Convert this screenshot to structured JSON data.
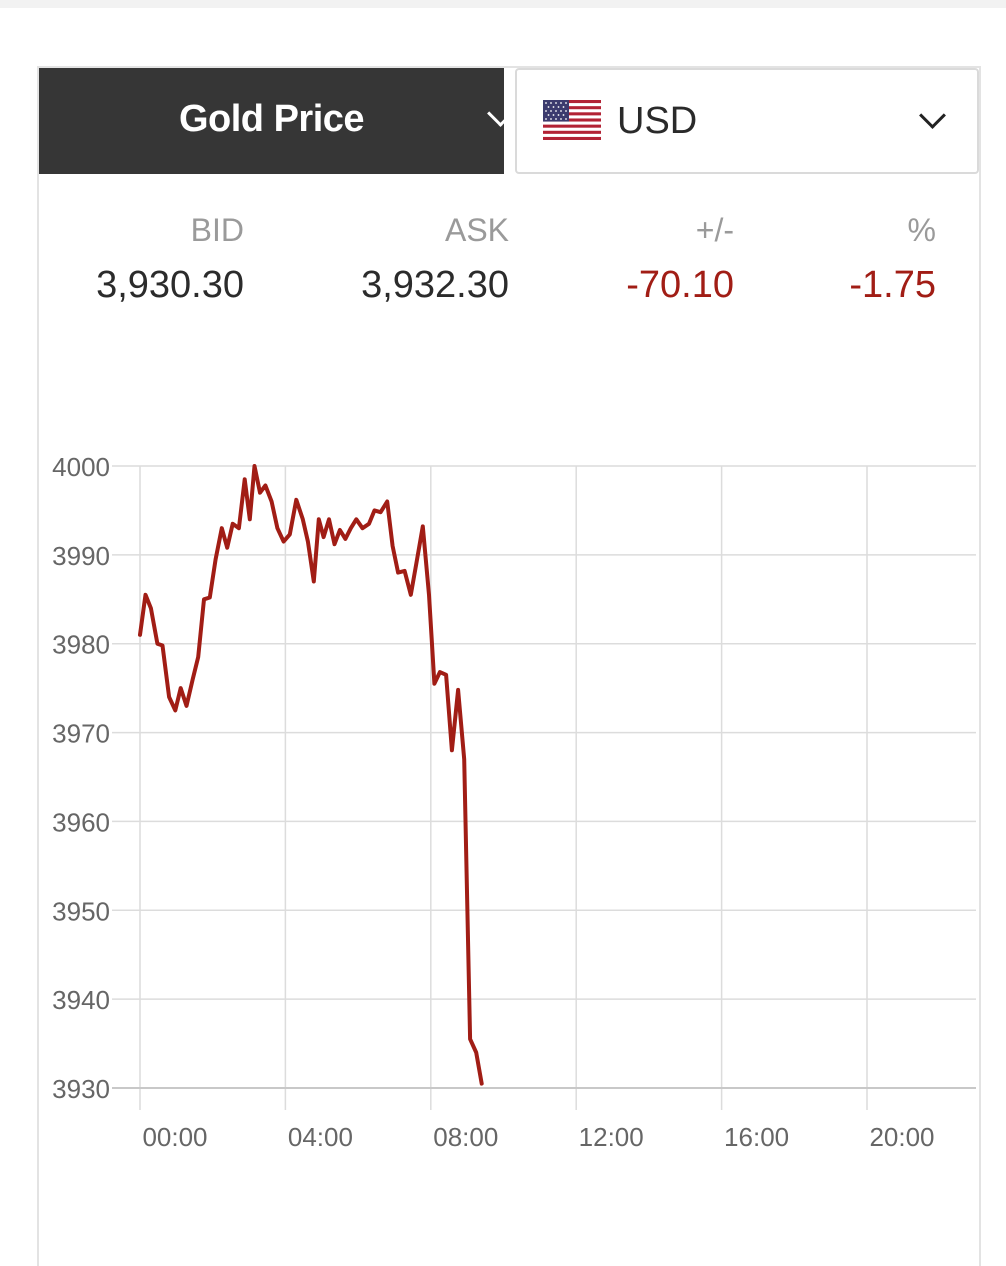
{
  "selector": {
    "metal": "Gold Price",
    "currency": "USD"
  },
  "quote": {
    "bid_label": "BID",
    "bid": "3,930.30",
    "ask_label": "ASK",
    "ask": "3,932.30",
    "change_label": "+/-",
    "change": "-70.10",
    "pct_label": "%",
    "pct": "-1.75"
  },
  "colors": {
    "line": "#a11d15",
    "negative": "#a11d15",
    "header_bg": "#363636"
  },
  "chart_data": {
    "type": "line",
    "title": "",
    "xlabel": "",
    "ylabel": "",
    "xlim": [
      0,
      23
    ],
    "ylim": [
      3930,
      4000
    ],
    "x_ticks": [
      0,
      4,
      8,
      12,
      16,
      20
    ],
    "x_tick_labels": [
      "00:00",
      "04:00",
      "08:00",
      "12:00",
      "16:00",
      "20:00"
    ],
    "y_ticks": [
      3930,
      3940,
      3950,
      3960,
      3970,
      3980,
      3990,
      4000
    ],
    "y_tick_labels": [
      "3930",
      "3940",
      "3950",
      "3960",
      "3970",
      "3980",
      "3990",
      "4000"
    ],
    "grid": true,
    "series": [
      {
        "values": [
          [
            0.0,
            3981.0
          ],
          [
            0.15,
            3985.5
          ],
          [
            0.3,
            3984.0
          ],
          [
            0.48,
            3980.0
          ],
          [
            0.62,
            3979.8
          ],
          [
            0.8,
            3974.0
          ],
          [
            0.97,
            3972.5
          ],
          [
            1.12,
            3975.0
          ],
          [
            1.28,
            3973.0
          ],
          [
            1.45,
            3976.0
          ],
          [
            1.6,
            3978.5
          ],
          [
            1.76,
            3985.0
          ],
          [
            1.92,
            3985.2
          ],
          [
            2.08,
            3989.5
          ],
          [
            2.25,
            3993.0
          ],
          [
            2.4,
            3990.8
          ],
          [
            2.55,
            3993.5
          ],
          [
            2.72,
            3993.0
          ],
          [
            2.88,
            3998.5
          ],
          [
            3.02,
            3994.0
          ],
          [
            3.15,
            4000.0
          ],
          [
            3.3,
            3997.0
          ],
          [
            3.45,
            3997.8
          ],
          [
            3.62,
            3996.0
          ],
          [
            3.78,
            3993.0
          ],
          [
            3.95,
            3991.5
          ],
          [
            4.12,
            3992.3
          ],
          [
            4.3,
            3996.2
          ],
          [
            4.48,
            3994.0
          ],
          [
            4.62,
            3991.5
          ],
          [
            4.78,
            3987.0
          ],
          [
            4.92,
            3994.0
          ],
          [
            5.05,
            3992.0
          ],
          [
            5.2,
            3994.0
          ],
          [
            5.35,
            3991.2
          ],
          [
            5.5,
            3992.8
          ],
          [
            5.65,
            3991.8
          ],
          [
            5.8,
            3993.0
          ],
          [
            5.95,
            3994.0
          ],
          [
            6.12,
            3993.0
          ],
          [
            6.3,
            3993.5
          ],
          [
            6.45,
            3995.0
          ],
          [
            6.62,
            3994.8
          ],
          [
            6.8,
            3996.0
          ],
          [
            6.95,
            3991.0
          ],
          [
            7.1,
            3988.0
          ],
          [
            7.28,
            3988.2
          ],
          [
            7.45,
            3985.5
          ],
          [
            7.6,
            3989.0
          ],
          [
            7.78,
            3993.2
          ],
          [
            7.95,
            3985.5
          ],
          [
            8.1,
            3975.5
          ],
          [
            8.25,
            3976.8
          ],
          [
            8.42,
            3976.5
          ],
          [
            8.58,
            3968.0
          ],
          [
            8.75,
            3974.8
          ],
          [
            8.92,
            3967.0
          ],
          [
            9.08,
            3935.5
          ],
          [
            9.25,
            3934.0
          ],
          [
            9.4,
            3930.5
          ]
        ]
      }
    ]
  }
}
